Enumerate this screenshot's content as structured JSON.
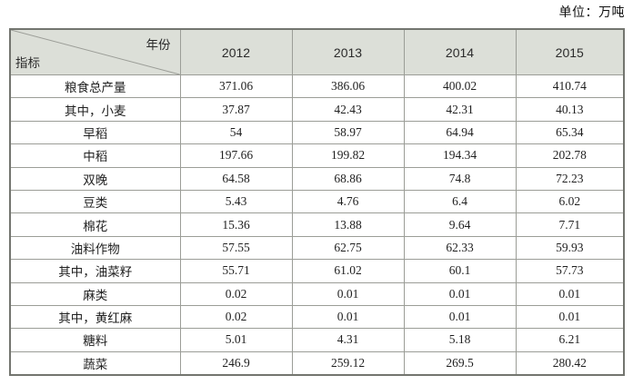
{
  "unit_label": "单位：万吨",
  "table": {
    "corner": {
      "top_right": "年份",
      "bottom_left": "指标"
    },
    "years": [
      "2012",
      "2013",
      "2014",
      "2015"
    ],
    "rows": [
      {
        "label": "粮食总产量",
        "values": [
          "371.06",
          "386.06",
          "400.02",
          "410.74"
        ]
      },
      {
        "label": "其中，小麦",
        "values": [
          "37.87",
          "42.43",
          "42.31",
          "40.13"
        ]
      },
      {
        "label": "早稻",
        "values": [
          "54",
          "58.97",
          "64.94",
          "65.34"
        ]
      },
      {
        "label": "中稻",
        "values": [
          "197.66",
          "199.82",
          "194.34",
          "202.78"
        ]
      },
      {
        "label": "双晚",
        "values": [
          "64.58",
          "68.86",
          "74.8",
          "72.23"
        ]
      },
      {
        "label": "豆类",
        "values": [
          "5.43",
          "4.76",
          "6.4",
          "6.02"
        ]
      },
      {
        "label": "棉花",
        "values": [
          "15.36",
          "13.88",
          "9.64",
          "7.71"
        ]
      },
      {
        "label": "油料作物",
        "values": [
          "57.55",
          "62.75",
          "62.33",
          "59.93"
        ]
      },
      {
        "label": "其中，油菜籽",
        "values": [
          "55.71",
          "61.02",
          "60.1",
          "57.73"
        ]
      },
      {
        "label": "麻类",
        "values": [
          "0.02",
          "0.01",
          "0.01",
          "0.01"
        ]
      },
      {
        "label": "其中，黄红麻",
        "values": [
          "0.02",
          "0.01",
          "0.01",
          "0.01"
        ]
      },
      {
        "label": "糖料",
        "values": [
          "5.01",
          "4.31",
          "5.18",
          "6.21"
        ]
      },
      {
        "label": "蔬菜",
        "values": [
          "246.9",
          "259.12",
          "269.5",
          "280.42"
        ]
      }
    ],
    "colors": {
      "header_bg": "#dcdfd8",
      "inner_border": "#9b9d97",
      "outer_border": "#73756f",
      "text": "#1f1f1f"
    }
  }
}
